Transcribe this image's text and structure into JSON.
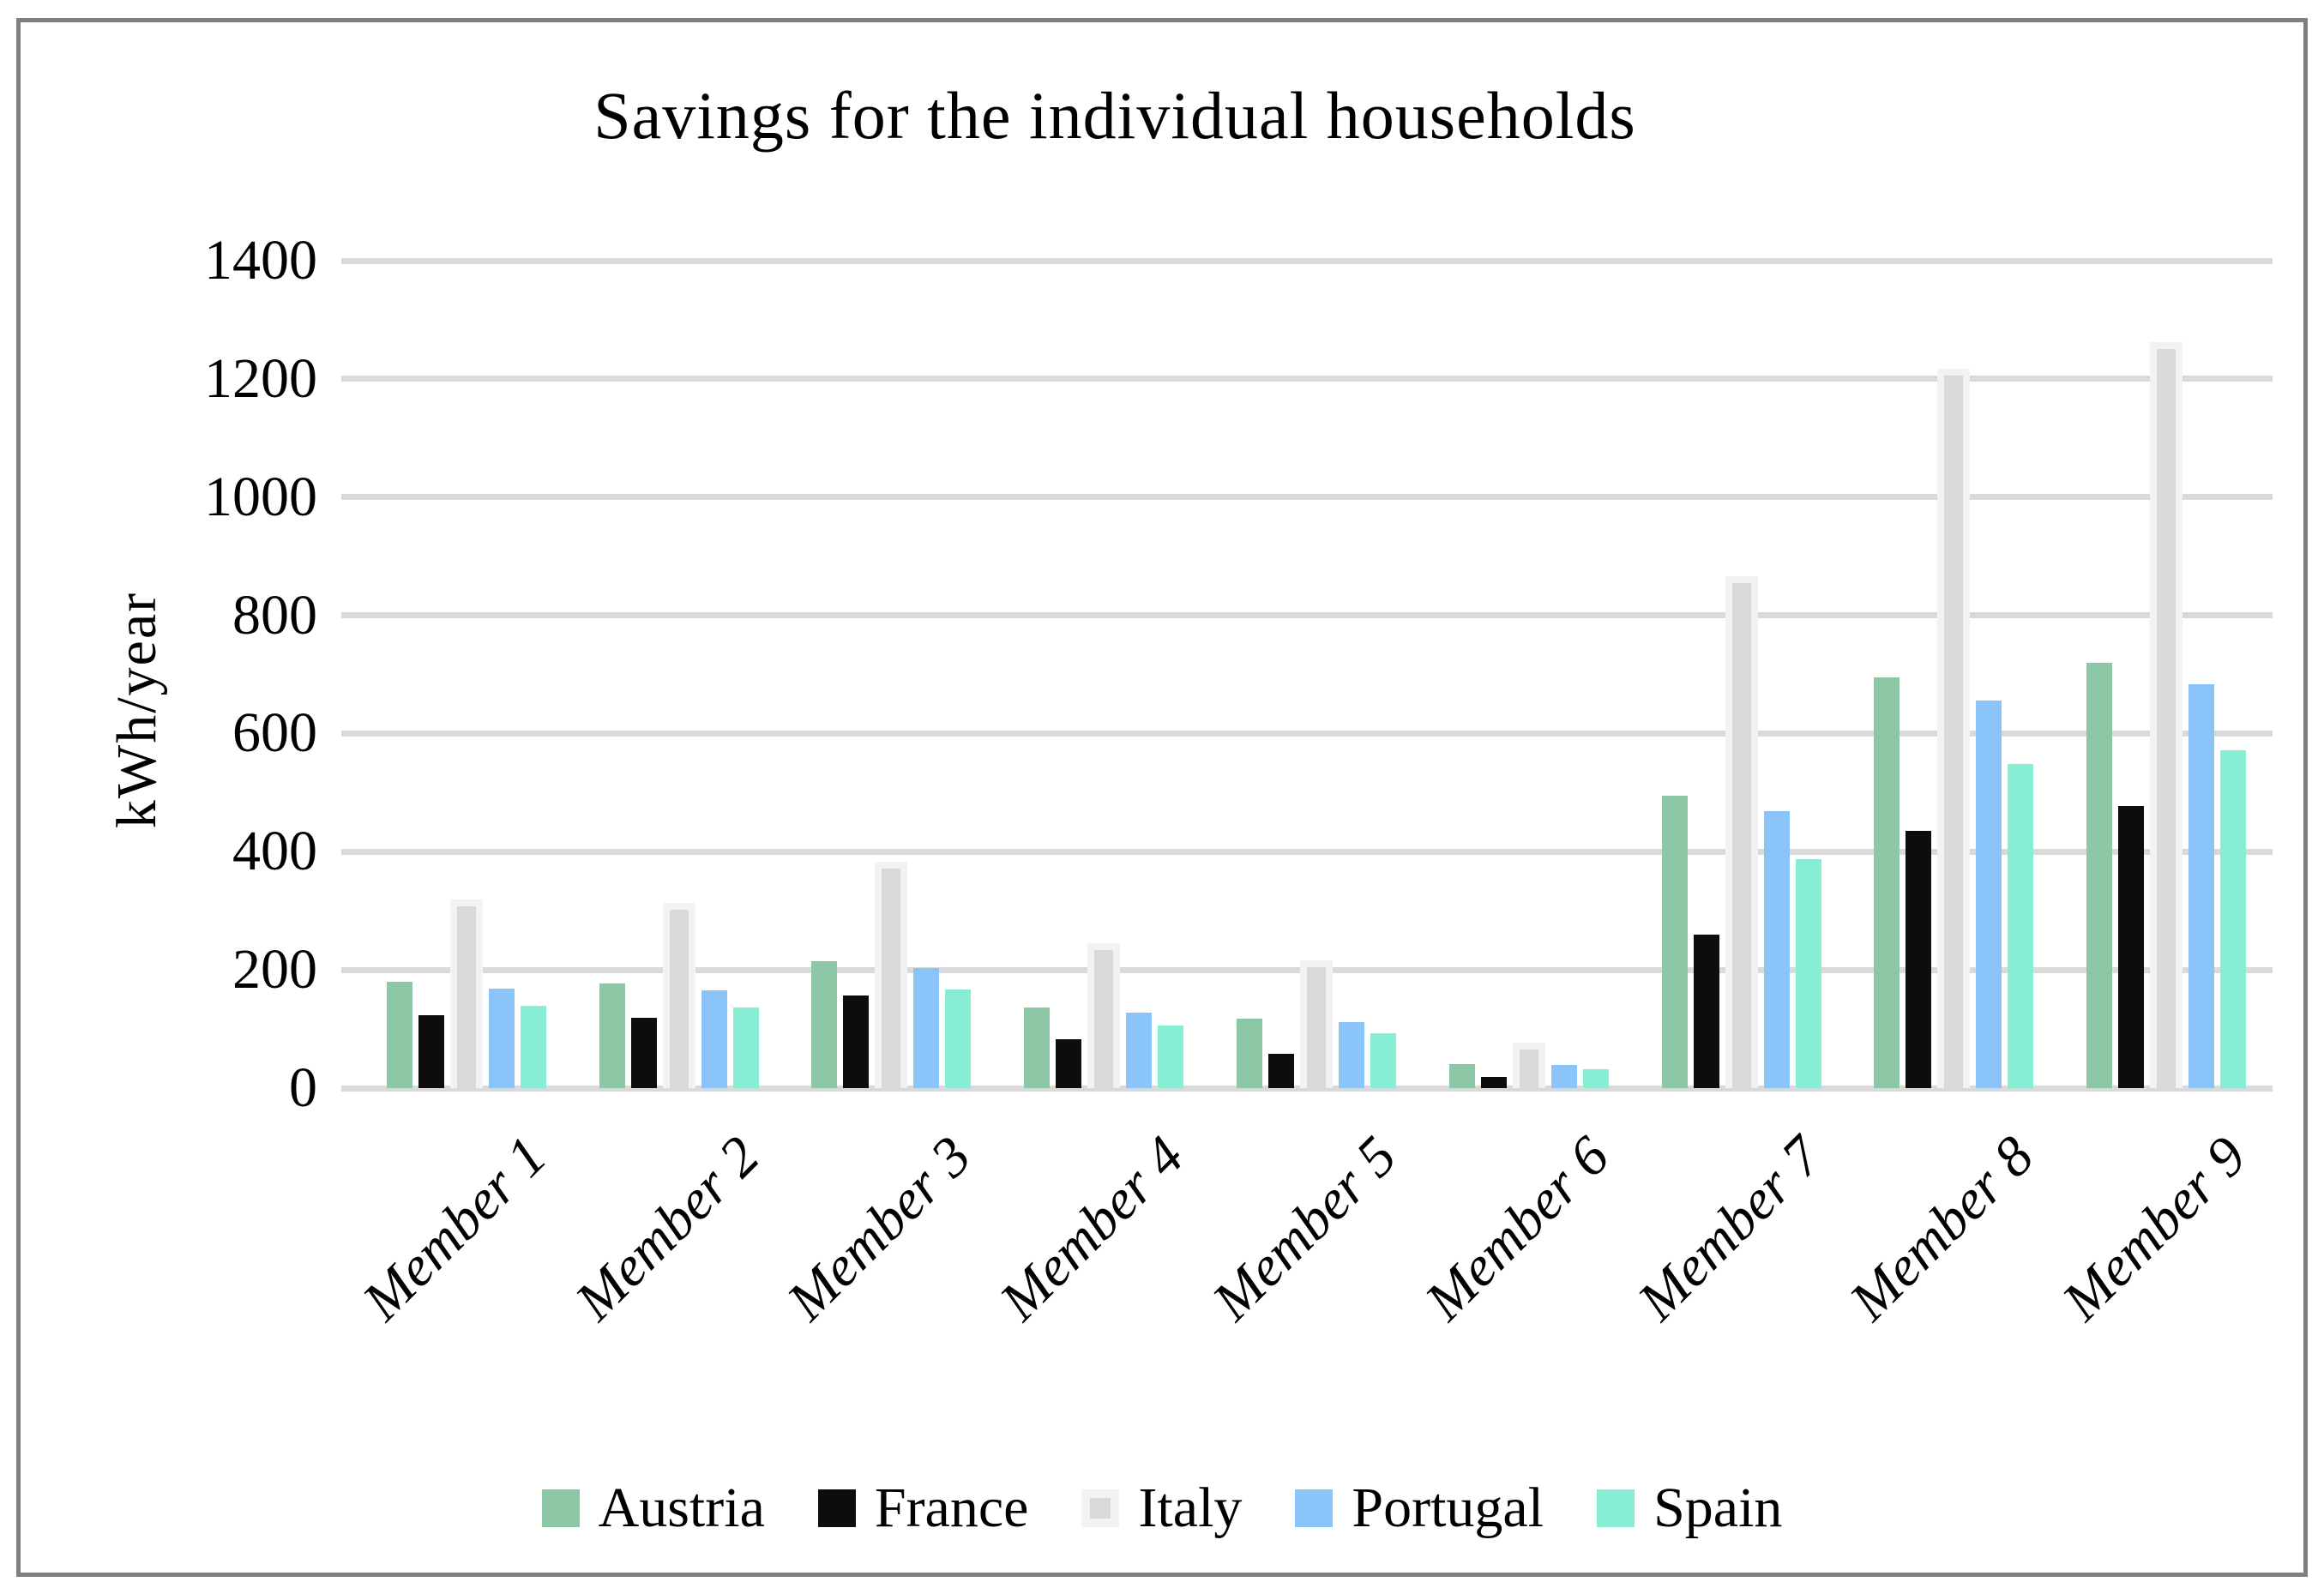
{
  "page": {
    "background": "#FFFFFF",
    "frame_border_color": "#808080"
  },
  "chart_data": {
    "type": "bar",
    "title": "Savings for the individual households",
    "xlabel": "",
    "ylabel": "kWh/year",
    "ylim": [
      0,
      1400
    ],
    "ytick_step": 200,
    "ytick_labels": [
      "1400",
      "1200",
      "1000",
      "800",
      "600",
      "400",
      "200",
      "0"
    ],
    "grid": true,
    "gridline_color": "#D9D9D9",
    "legend_position": "bottom",
    "categories": [
      "Member 1",
      "Member 2",
      "Member 3",
      "Member 4",
      "Member 5",
      "Member 6",
      "Member 7",
      "Member 8",
      "Member 9"
    ],
    "series": [
      {
        "name": "Austria",
        "color": "#8CC7A6",
        "values": [
          180,
          177,
          215,
          136,
          118,
          41,
          495,
          695,
          720
        ]
      },
      {
        "name": "France",
        "color": "#0D0D0D",
        "values": [
          124,
          119,
          157,
          82,
          58,
          19,
          260,
          435,
          477
        ]
      },
      {
        "name": "Italy",
        "color": "#D9D9D9",
        "border_color": "#F2F2F2",
        "values": [
          308,
          302,
          371,
          234,
          205,
          66,
          855,
          1205,
          1250
        ]
      },
      {
        "name": "Portugal",
        "color": "#8BC4F8",
        "values": [
          168,
          165,
          203,
          128,
          112,
          39,
          468,
          656,
          683
        ]
      },
      {
        "name": "Spain",
        "color": "#88EDD5",
        "values": [
          140,
          137,
          167,
          106,
          93,
          32,
          388,
          548,
          572
        ]
      }
    ]
  }
}
